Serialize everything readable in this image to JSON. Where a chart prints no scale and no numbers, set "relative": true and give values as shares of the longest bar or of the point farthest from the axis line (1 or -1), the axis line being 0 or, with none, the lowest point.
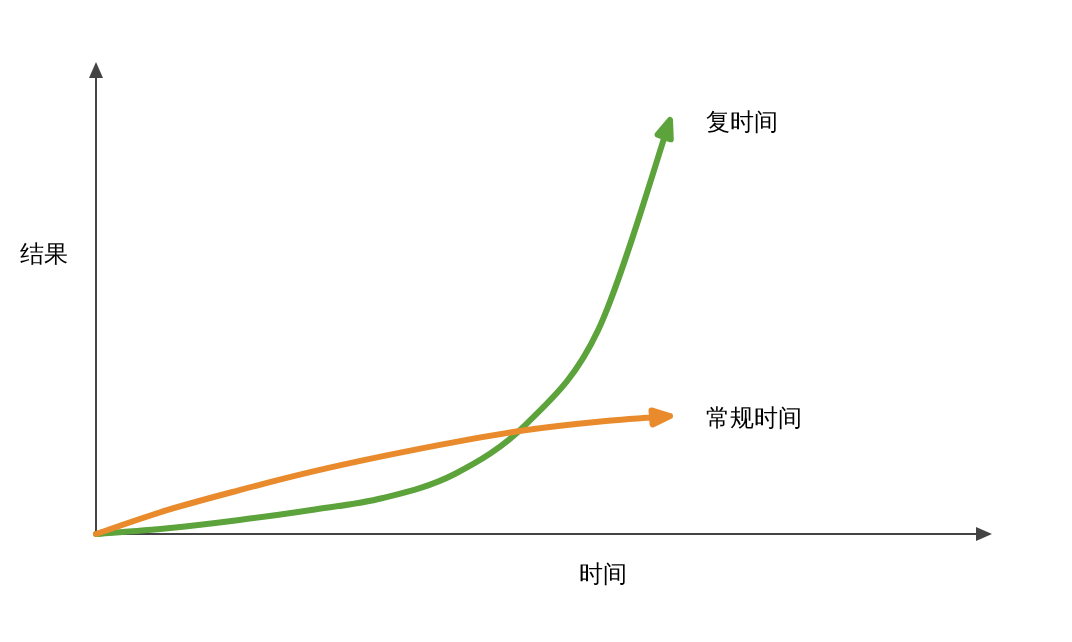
{
  "chart_data": {
    "type": "line",
    "relative": true,
    "xlabel": "时间",
    "ylabel": "结果",
    "categories": [
      null,
      null,
      null,
      null,
      null,
      null,
      null,
      null,
      null
    ],
    "series": [
      {
        "name": "复时间",
        "color": "#5ca33c",
        "values": [
          0,
          0.014,
          0.034,
          0.058,
          0.087,
          0.145,
          0.266,
          0.493,
          1
        ]
      },
      {
        "name": "常规时间",
        "color": "#e98b2c",
        "values": [
          0,
          0.058,
          0.106,
          0.15,
          0.188,
          0.222,
          0.251,
          0.271,
          0.285
        ]
      }
    ],
    "grid": false,
    "legend": "right",
    "marker": "none",
    "line_style": "solid"
  }
}
